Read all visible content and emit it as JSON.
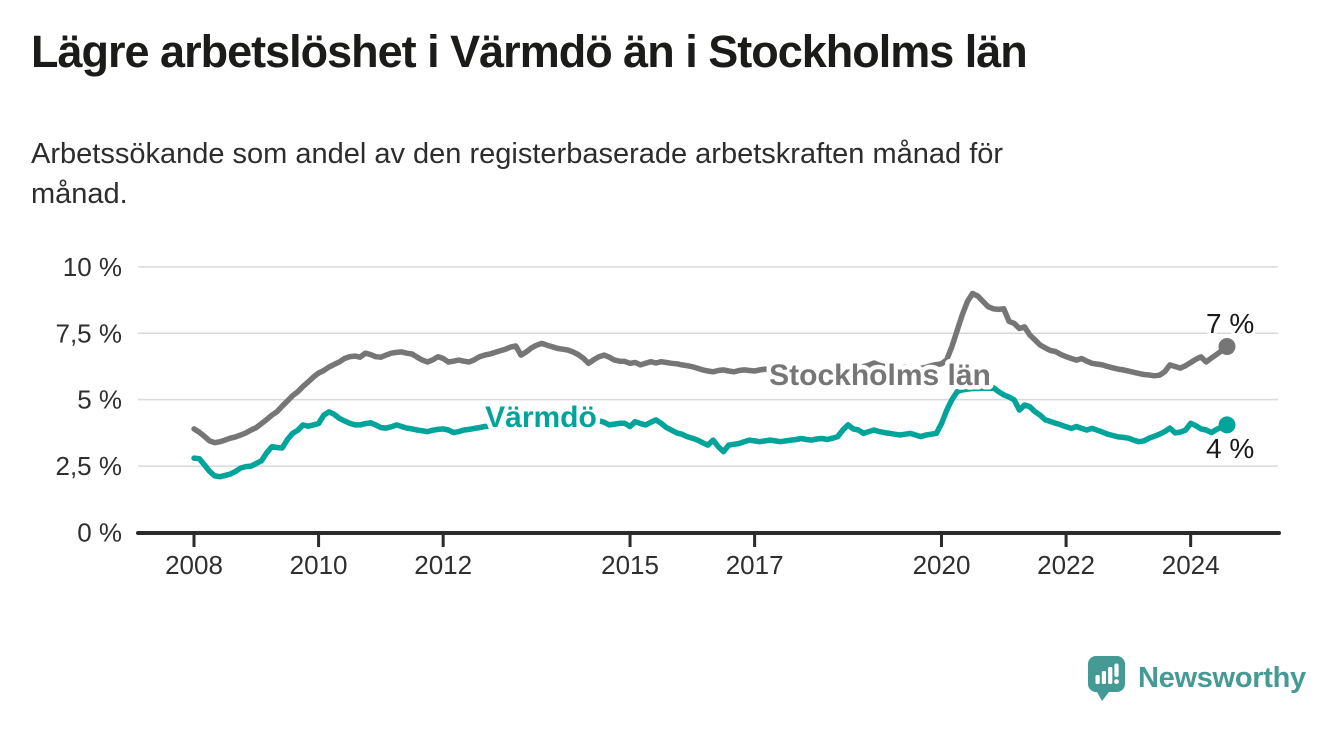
{
  "header": {
    "title": "Lägre arbetslöshet i Värmdö än i Stockholms län",
    "subtitle": "Arbetssökande som andel av den registerbaserade arbetskraften månad för månad."
  },
  "chart_data": {
    "type": "line",
    "unit": "%",
    "frequency": "monthly",
    "x_start": "2008-01",
    "x_end": "2024-08",
    "ylim": [
      0,
      10
    ],
    "grid": "horizontal",
    "legend_position": "inline-labels",
    "y_ticks": [
      {
        "label": "10 %",
        "value": 10
      },
      {
        "label": "7,5 %",
        "value": 7.5
      },
      {
        "label": "5 %",
        "value": 5
      },
      {
        "label": "2,5 %",
        "value": 2.5
      },
      {
        "label": "0 %",
        "value": 0
      }
    ],
    "x_ticks": [
      {
        "label": "2008",
        "year": 2008
      },
      {
        "label": "2010",
        "year": 2010
      },
      {
        "label": "2012",
        "year": 2012
      },
      {
        "label": "2015",
        "year": 2015
      },
      {
        "label": "2017",
        "year": 2017
      },
      {
        "label": "2020",
        "year": 2020
      },
      {
        "label": "2022",
        "year": 2022
      },
      {
        "label": "2024",
        "year": 2024
      }
    ],
    "series": [
      {
        "name": "Stockholms län",
        "color": "#767676",
        "end_label": "7 %",
        "end_value": 7.0,
        "values": [
          3.9,
          3.78,
          3.62,
          3.45,
          3.38,
          3.42,
          3.48,
          3.55,
          3.6,
          3.67,
          3.75,
          3.86,
          3.95,
          4.1,
          4.25,
          4.42,
          4.55,
          4.76,
          4.95,
          5.15,
          5.3,
          5.5,
          5.67,
          5.85,
          6.0,
          6.1,
          6.23,
          6.33,
          6.42,
          6.55,
          6.62,
          6.64,
          6.6,
          6.75,
          6.7,
          6.62,
          6.6,
          6.68,
          6.75,
          6.78,
          6.8,
          6.75,
          6.72,
          6.6,
          6.49,
          6.42,
          6.5,
          6.62,
          6.55,
          6.42,
          6.45,
          6.49,
          6.45,
          6.42,
          6.5,
          6.62,
          6.68,
          6.72,
          6.78,
          6.84,
          6.9,
          6.98,
          7.02,
          6.68,
          6.8,
          6.95,
          7.05,
          7.12,
          7.05,
          6.99,
          6.93,
          6.9,
          6.87,
          6.8,
          6.7,
          6.56,
          6.37,
          6.5,
          6.62,
          6.68,
          6.6,
          6.49,
          6.45,
          6.44,
          6.37,
          6.4,
          6.31,
          6.37,
          6.43,
          6.38,
          6.43,
          6.4,
          6.37,
          6.35,
          6.31,
          6.28,
          6.24,
          6.18,
          6.12,
          6.08,
          6.05,
          6.1,
          6.12,
          6.08,
          6.05,
          6.1,
          6.12,
          6.1,
          6.08,
          6.12,
          6.15,
          6.1,
          6.05,
          6.0,
          6.03,
          6.06,
          6.02,
          5.98,
          6.0,
          6.05,
          6.0,
          5.95,
          5.97,
          6.0,
          6.05,
          6.1,
          6.08,
          6.12,
          6.18,
          6.25,
          6.3,
          6.38,
          6.3,
          6.25,
          6.2,
          6.15,
          6.18,
          6.22,
          6.18,
          6.14,
          6.18,
          6.22,
          6.28,
          6.32,
          6.35,
          6.5,
          7.0,
          7.6,
          8.2,
          8.7,
          9.0,
          8.9,
          8.7,
          8.5,
          8.42,
          8.4,
          8.42,
          7.95,
          7.87,
          7.68,
          7.74,
          7.44,
          7.25,
          7.06,
          6.95,
          6.85,
          6.81,
          6.7,
          6.62,
          6.55,
          6.49,
          6.55,
          6.45,
          6.37,
          6.34,
          6.31,
          6.25,
          6.2,
          6.15,
          6.12,
          6.08,
          6.03,
          5.99,
          5.95,
          5.93,
          5.9,
          5.92,
          6.05,
          6.31,
          6.25,
          6.19,
          6.28,
          6.4,
          6.52,
          6.61,
          6.42,
          6.57,
          6.7,
          6.85,
          7.0
        ]
      },
      {
        "name": "Värmdö",
        "color": "#00a49a",
        "end_label": "4 %",
        "end_value": 4.0,
        "values": [
          2.8,
          2.78,
          2.55,
          2.3,
          2.13,
          2.1,
          2.15,
          2.2,
          2.3,
          2.43,
          2.48,
          2.5,
          2.6,
          2.7,
          3.0,
          3.23,
          3.2,
          3.18,
          3.5,
          3.73,
          3.85,
          4.05,
          4.0,
          4.05,
          4.1,
          4.42,
          4.54,
          4.45,
          4.3,
          4.2,
          4.11,
          4.05,
          4.05,
          4.1,
          4.13,
          4.05,
          3.95,
          3.93,
          3.98,
          4.05,
          3.99,
          3.93,
          3.9,
          3.86,
          3.83,
          3.8,
          3.85,
          3.88,
          3.9,
          3.86,
          3.76,
          3.8,
          3.86,
          3.88,
          3.92,
          3.95,
          3.99,
          4.0,
          4.05,
          4.06,
          4.07,
          4.07,
          4.08,
          4.1,
          4.12,
          4.1,
          4.12,
          4.15,
          4.18,
          4.15,
          4.18,
          4.2,
          4.22,
          4.28,
          4.3,
          4.25,
          4.2,
          4.18,
          4.21,
          4.15,
          4.05,
          4.08,
          4.11,
          4.11,
          3.99,
          4.17,
          4.1,
          4.05,
          4.15,
          4.24,
          4.11,
          3.95,
          3.85,
          3.75,
          3.7,
          3.61,
          3.55,
          3.48,
          3.38,
          3.29,
          3.48,
          3.23,
          3.04,
          3.29,
          3.32,
          3.35,
          3.42,
          3.48,
          3.45,
          3.42,
          3.45,
          3.48,
          3.45,
          3.42,
          3.45,
          3.48,
          3.5,
          3.54,
          3.5,
          3.48,
          3.52,
          3.54,
          3.5,
          3.55,
          3.61,
          3.86,
          4.05,
          3.9,
          3.86,
          3.73,
          3.8,
          3.86,
          3.8,
          3.76,
          3.73,
          3.7,
          3.67,
          3.7,
          3.73,
          3.67,
          3.61,
          3.67,
          3.7,
          3.73,
          4.1,
          4.6,
          5.0,
          5.3,
          5.37,
          5.4,
          5.42,
          5.42,
          5.43,
          5.43,
          5.45,
          5.3,
          5.18,
          5.1,
          4.99,
          4.61,
          4.8,
          4.74,
          4.55,
          4.42,
          4.24,
          4.18,
          4.11,
          4.05,
          3.98,
          3.92,
          3.99,
          3.92,
          3.86,
          3.92,
          3.85,
          3.78,
          3.7,
          3.65,
          3.6,
          3.58,
          3.55,
          3.48,
          3.42,
          3.45,
          3.55,
          3.62,
          3.7,
          3.8,
          3.93,
          3.75,
          3.78,
          3.85,
          4.11,
          4.02,
          3.9,
          3.86,
          3.76,
          3.88,
          3.97,
          4.05
        ]
      }
    ]
  },
  "footer": {
    "logo_text": "Newsworthy"
  }
}
